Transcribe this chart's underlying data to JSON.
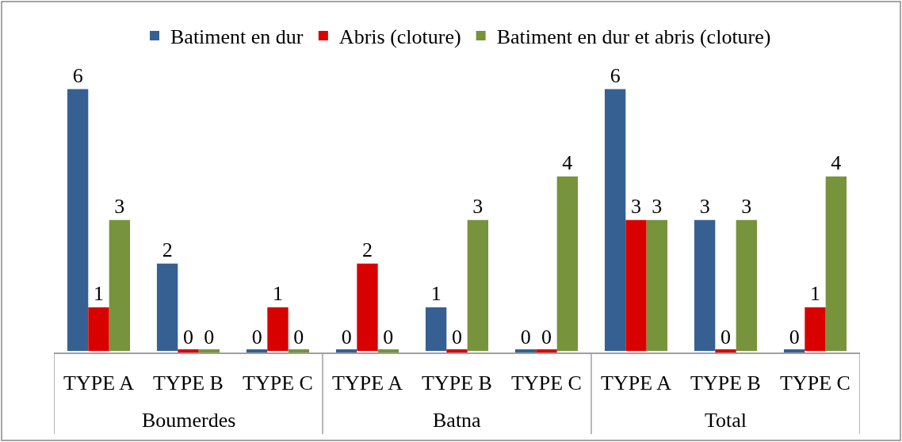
{
  "chart_data": {
    "type": "bar",
    "categories": [
      "TYPE A",
      "TYPE B",
      "TYPE C",
      "TYPE A",
      "TYPE B",
      "TYPE C",
      "TYPE A",
      "TYPE B",
      "TYPE C"
    ],
    "annotations": [
      "Boumerdes",
      "Batna",
      "Total"
    ],
    "series": [
      {
        "name": "Batiment en dur",
        "color": "#366092",
        "values": [
          6,
          2,
          0,
          0,
          1,
          0,
          6,
          3,
          0
        ]
      },
      {
        "name": "Abris (cloture)",
        "color": "#d90000",
        "values": [
          1,
          0,
          1,
          2,
          0,
          0,
          3,
          0,
          1
        ]
      },
      {
        "name": "Batiment en dur et abris (cloture)",
        "color": "#77933c",
        "values": [
          3,
          0,
          0,
          0,
          3,
          4,
          3,
          3,
          4
        ]
      }
    ],
    "data_labels": true,
    "legend": "top",
    "tick_labels": "x"
  }
}
